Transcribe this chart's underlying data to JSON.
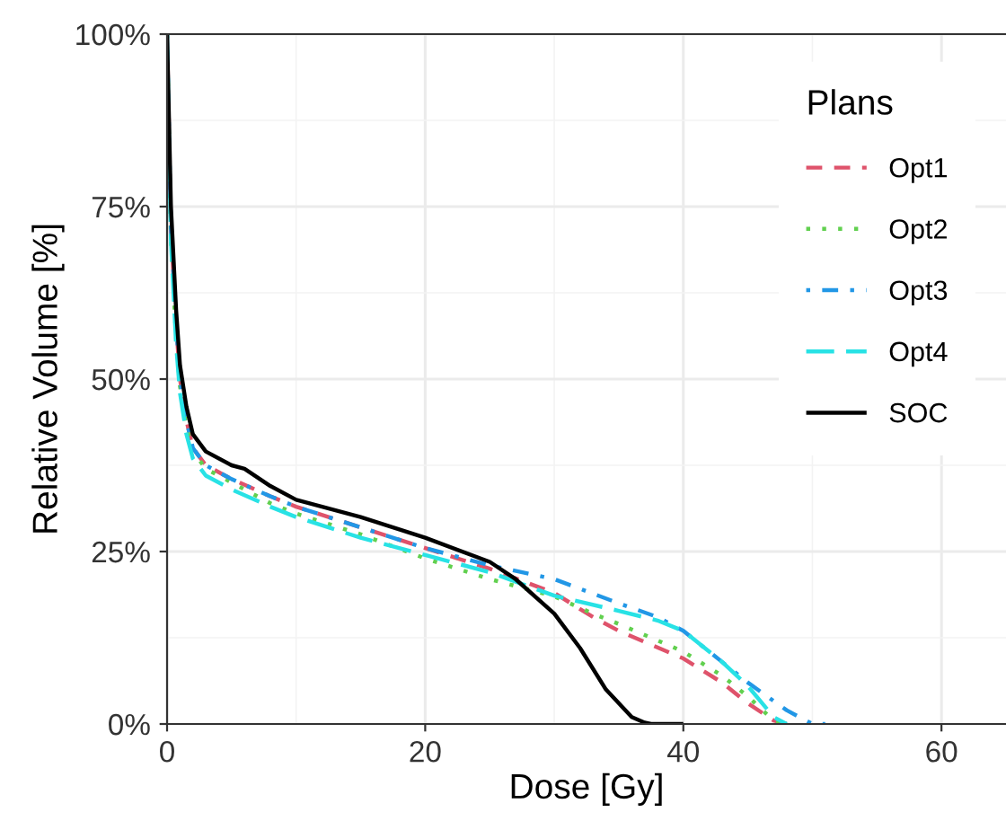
{
  "chart_data": {
    "type": "line",
    "xlabel": "Dose [Gy]",
    "ylabel": "Relative Volume [%]",
    "legend_title": "Plans",
    "legend": "top right",
    "grid": true,
    "xlim": [
      0,
      65
    ],
    "xticks": [
      0,
      20,
      40,
      60
    ],
    "ylim": [
      0,
      100
    ],
    "yticks": [
      {
        "value": 0,
        "label": "0%"
      },
      {
        "value": 25,
        "label": "25%"
      },
      {
        "value": 50,
        "label": "50%"
      },
      {
        "value": 75,
        "label": "75%"
      },
      {
        "value": 100,
        "label": "100%"
      }
    ],
    "series": [
      {
        "name": "Opt1",
        "color": "#df536b",
        "line_style": "dashed",
        "x": [
          0,
          0.3,
          0.7,
          1,
          1.5,
          2,
          3,
          5,
          8,
          10,
          15,
          20,
          25,
          30,
          33,
          35,
          40,
          43,
          45,
          47,
          48
        ],
        "values": [
          100,
          72,
          58,
          50,
          44,
          40,
          37.5,
          35.5,
          33,
          31.5,
          28.5,
          25.5,
          22.5,
          19,
          15.5,
          13.5,
          9.5,
          6,
          3,
          0.5,
          0
        ]
      },
      {
        "name": "Opt2",
        "color": "#61d04f",
        "line_style": "dotted",
        "x": [
          0,
          0.3,
          0.7,
          1,
          1.5,
          2,
          3,
          5,
          8,
          10,
          15,
          20,
          25,
          30,
          33,
          35,
          40,
          43,
          45,
          47,
          48
        ],
        "values": [
          100,
          70,
          56,
          49,
          43,
          39.5,
          37,
          35,
          32,
          30.5,
          27.5,
          24,
          21,
          18.5,
          16,
          14.5,
          10.5,
          7,
          4,
          0.5,
          0
        ]
      },
      {
        "name": "Opt3",
        "color": "#2297e6",
        "line_style": "dashdot",
        "x": [
          0,
          0.3,
          0.7,
          1,
          1.5,
          2,
          3,
          5,
          8,
          10,
          15,
          20,
          25,
          30,
          35,
          38,
          40,
          43,
          45,
          48,
          50,
          51
        ],
        "values": [
          100,
          72,
          58,
          50,
          44,
          40,
          37.5,
          35.5,
          33,
          31.5,
          28.5,
          25.5,
          23,
          21,
          17.5,
          15.5,
          13.5,
          9,
          6,
          2,
          0,
          0
        ]
      },
      {
        "name": "Opt4",
        "color": "#28e2e5",
        "line_style": "longdash",
        "x": [
          0,
          0.3,
          0.7,
          1,
          1.5,
          2,
          3,
          5,
          8,
          10,
          15,
          20,
          25,
          30,
          35,
          38,
          40,
          43,
          45,
          47,
          48
        ],
        "values": [
          100,
          70,
          55,
          48,
          42,
          38.5,
          36,
          34,
          31.5,
          30,
          27,
          24.5,
          22,
          18.6,
          16.4,
          15,
          13.5,
          9,
          5.5,
          1,
          0
        ]
      },
      {
        "name": "SOC",
        "color": "#000000",
        "line_style": "solid",
        "x": [
          0,
          0.3,
          0.7,
          1,
          1.5,
          2,
          3,
          5,
          6,
          8,
          10,
          15,
          20,
          25,
          27,
          30,
          32,
          34,
          36,
          37,
          37.5,
          40
        ],
        "values": [
          100,
          75,
          60,
          52,
          46,
          42,
          39.5,
          37.5,
          37,
          34.5,
          32.5,
          30,
          27,
          23.5,
          21,
          16,
          11,
          5,
          1,
          0.2,
          0,
          0
        ]
      }
    ]
  }
}
